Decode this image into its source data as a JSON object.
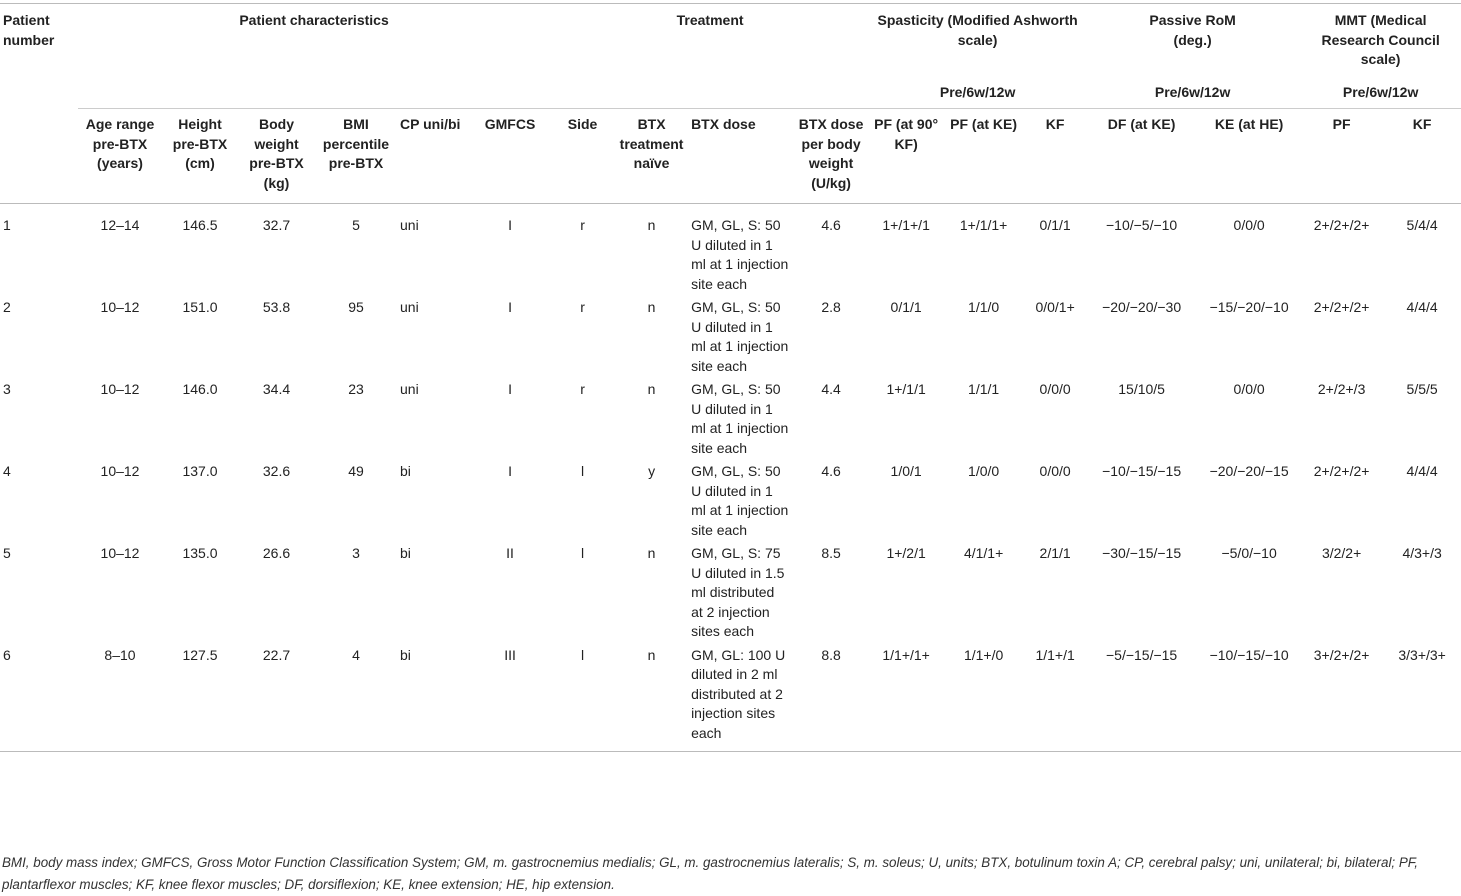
{
  "header": {
    "patient_number": "Patient number",
    "groups": [
      {
        "title": "Patient characteristics",
        "span": 6
      },
      {
        "title": "Treatment",
        "span": 4
      },
      {
        "title": "Spasticity (Modified Ashworth scale)",
        "sub": "Pre/6w/12w",
        "span": 3
      },
      {
        "title": "Passive RoM (deg.)",
        "sub": "Pre/6w/12w",
        "span": 2
      },
      {
        "title": "MMT (Medical Research Council scale)",
        "sub": "Pre/6w/12w",
        "span": 2
      }
    ],
    "columns": [
      "Age range pre-BTX (years)",
      "Height pre-BTX (cm)",
      "Body weight pre-BTX (kg)",
      "BMI percentile pre-BTX",
      "CP uni/bi",
      "GMFCS",
      "Side",
      "BTX treatment naïve",
      "BTX dose",
      "BTX dose per body weight (U/kg)",
      "PF (at 90° KF)",
      "PF (at KE)",
      "KF",
      "DF (at KE)",
      "KE (at HE)",
      "PF",
      "KF"
    ]
  },
  "rows": [
    [
      "1",
      "12–14",
      "146.5",
      "32.7",
      "5",
      "uni",
      "I",
      "r",
      "n",
      "GM, GL, S: 50 U diluted in 1 ml at 1 injection site each",
      "4.6",
      "1+/1+/1",
      "1+/1/1+",
      "0/1/1",
      "−10/−5/−10",
      "0/0/0",
      "2+/2+/2+",
      "5/4/4"
    ],
    [
      "2",
      "10–12",
      "151.0",
      "53.8",
      "95",
      "uni",
      "I",
      "r",
      "n",
      "GM, GL, S: 50 U diluted in 1 ml at 1 injection site each",
      "2.8",
      "0/1/1",
      "1/1/0",
      "0/0/1+",
      "−20/−20/−30",
      "−15/−20/−10",
      "2+/2+/2+",
      "4/4/4"
    ],
    [
      "3",
      "10–12",
      "146.0",
      "34.4",
      "23",
      "uni",
      "I",
      "r",
      "n",
      "GM, GL, S: 50 U diluted in 1 ml at 1 injection site each",
      "4.4",
      "1+/1/1",
      "1/1/1",
      "0/0/0",
      "15/10/5",
      "0/0/0",
      "2+/2+/3",
      "5/5/5"
    ],
    [
      "4",
      "10–12",
      "137.0",
      "32.6",
      "49",
      "bi",
      "I",
      "l",
      "y",
      "GM, GL, S: 50 U diluted in 1 ml at 1 injection site each",
      "4.6",
      "1/0/1",
      "1/0/0",
      "0/0/0",
      "−10/−15/−15",
      "−20/−20/−15",
      "2+/2+/2+",
      "4/4/4"
    ],
    [
      "5",
      "10–12",
      "135.0",
      "26.6",
      "3",
      "bi",
      "II",
      "l",
      "n",
      "GM, GL, S: 75 U diluted in 1.5 ml distributed at 2 injection sites each",
      "8.5",
      "1+/2/1",
      "4/1/1+",
      "2/1/1",
      "−30/−15/−15",
      "−5/0/−10",
      "3/2/2+",
      "4/3+/3"
    ],
    [
      "6",
      "8–10",
      "127.5",
      "22.7",
      "4",
      "bi",
      "III",
      "l",
      "n",
      "GM, GL: 100 U diluted in 2 ml distributed at 2 injection sites each",
      "8.8",
      "1/1+/1+",
      "1/1+/0",
      "1/1+/1",
      "−5/−15/−15",
      "−10/−15/−10",
      "3+/2+/2+",
      "3/3+/3+"
    ]
  ],
  "footnote": "BMI, body mass index; GMFCS, Gross Motor Function Classification System; GM, m. gastrocnemius medialis; GL, m. gastrocnemius lateralis; S, m. soleus; U, units; BTX, botulinum toxin A; CP, cerebral palsy; uni, unilateral; bi, bilateral; PF, plantarflexor muscles; KF, knee flexor muscles; DF, dorsiflexion; KE, knee extension; HE, hip extension."
}
